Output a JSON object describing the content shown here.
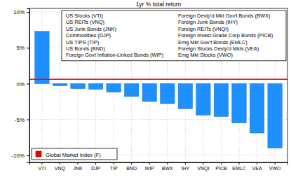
{
  "chart_data": {
    "type": "bar",
    "title": "1yr % total return",
    "categories": [
      "VTI",
      "VNQ",
      "JNK",
      "DJP",
      "TIP",
      "BND",
      "WIP",
      "BWX",
      "IHY",
      "VNQI",
      "PICB",
      "EMLC",
      "VEA",
      "VWO"
    ],
    "values": [
      7.3,
      -0.3,
      -0.7,
      -0.8,
      -1.2,
      -1.8,
      -2.5,
      -2.8,
      -3.5,
      -4.4,
      -4.6,
      -5.5,
      -6.9,
      -9.0
    ],
    "color": "#1e90ff",
    "ylim": [
      -11,
      10.5
    ],
    "yticks": [
      {
        "value": -10,
        "label": "-10%"
      },
      {
        "value": -5,
        "label": "-5%"
      },
      {
        "value": 0,
        "label": "0%"
      },
      {
        "value": 5,
        "label": "5%"
      },
      {
        "value": 10,
        "label": "10%"
      }
    ],
    "grid": true,
    "annotations": [
      "US Stocks (VTI)",
      "US REITs (VNQ)",
      "US Junk Bonds (JNK)",
      "Commodities (DJP)",
      "US TIPS (TIP)",
      "US Bonds (BND)",
      "Foreign Govt Inflation-Linked Bonds (WIP)",
      "Foreign Devlp'd Mkt Gov't Bonds (BWX)",
      "Foreign Junk Bonds (IHY)",
      "Foreign REITs (VNQI)",
      "Foreign Invest-Grade Corp Bonds (PICB)",
      "Emg Mkt Gov't Bonds (EMLC)",
      "Foreign Stocks Devlp'd Mkts (VEA)",
      "Emg Mkt Stocks (VWO)"
    ],
    "reference_line": {
      "name": "Global Market Index (F)",
      "value": 0.6,
      "color": "#ff0000"
    },
    "legend": "bottom left"
  }
}
